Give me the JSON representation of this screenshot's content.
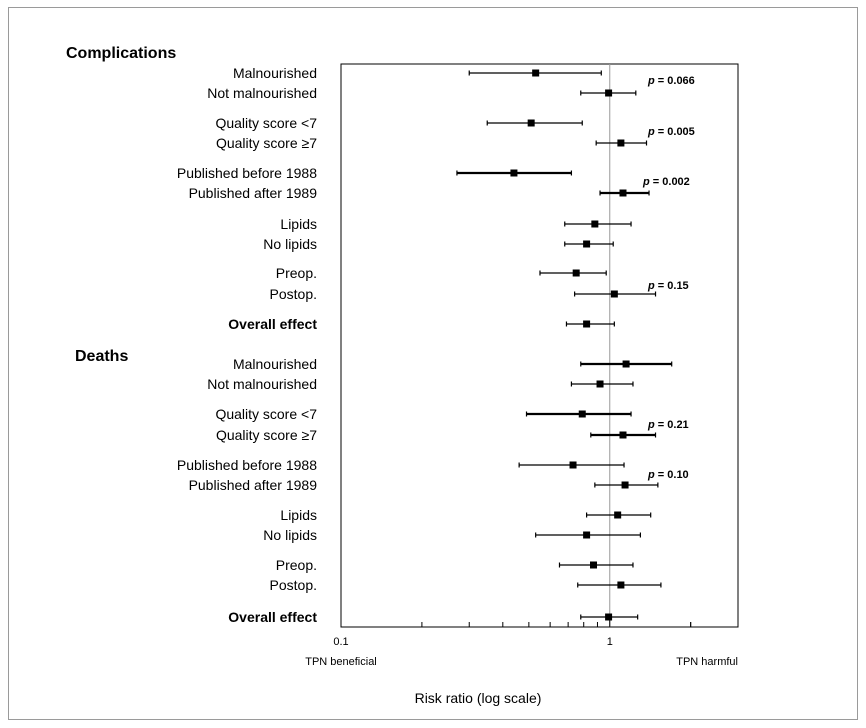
{
  "chart_data": {
    "type": "forest",
    "x_scale": "log",
    "xlim": [
      0.1,
      3
    ],
    "x_ticks": [
      "0.1",
      "1"
    ],
    "x_tick_values": [
      0.1,
      1
    ],
    "xlabel": "Risk ratio (log scale)",
    "left_note": "TPN beneficial",
    "right_note": "TPN harmful",
    "reference_line": 1,
    "sections": [
      {
        "title": "Complications",
        "rows": [
          {
            "label": "Malnourished",
            "est": 0.53,
            "lo": 0.3,
            "hi": 0.93
          },
          {
            "label": "Not malnourished",
            "est": 0.99,
            "lo": 0.78,
            "hi": 1.25
          },
          {
            "label": "Quality score <7",
            "est": 0.51,
            "lo": 0.35,
            "hi": 0.79
          },
          {
            "label": "Quality score ≥7",
            "est": 1.1,
            "lo": 0.89,
            "hi": 1.37
          },
          {
            "label": "Published before 1988",
            "est": 0.44,
            "lo": 0.27,
            "hi": 0.72,
            "bold_ci": true
          },
          {
            "label": "Published after 1989",
            "est": 1.12,
            "lo": 0.92,
            "hi": 1.4,
            "bold_ci": true
          },
          {
            "label": "Lipids",
            "est": 0.88,
            "lo": 0.68,
            "hi": 1.2
          },
          {
            "label": "No lipids",
            "est": 0.82,
            "lo": 0.68,
            "hi": 1.03
          },
          {
            "label": "Preop.",
            "est": 0.75,
            "lo": 0.55,
            "hi": 0.97
          },
          {
            "label": "Postop.",
            "est": 1.04,
            "lo": 0.74,
            "hi": 1.48
          },
          {
            "label": "Overall effect",
            "est": 0.82,
            "lo": 0.69,
            "hi": 1.04,
            "bold_label": true
          }
        ],
        "p_values": [
          "0.066",
          "0.005",
          "0.002",
          "0.15"
        ]
      },
      {
        "title": "Deaths",
        "rows": [
          {
            "label": "Malnourished",
            "est": 1.15,
            "lo": 0.78,
            "hi": 1.7,
            "bold_ci": true
          },
          {
            "label": "Not malnourished",
            "est": 0.92,
            "lo": 0.72,
            "hi": 1.22
          },
          {
            "label": "Quality score <7",
            "est": 0.79,
            "lo": 0.49,
            "hi": 1.2,
            "bold_ci": true
          },
          {
            "label": "Quality score ≥7",
            "est": 1.12,
            "lo": 0.85,
            "hi": 1.48,
            "bold_ci": true
          },
          {
            "label": "Published before 1988",
            "est": 0.73,
            "lo": 0.46,
            "hi": 1.13
          },
          {
            "label": "Published after 1989",
            "est": 1.14,
            "lo": 0.88,
            "hi": 1.51
          },
          {
            "label": "Lipids",
            "est": 1.07,
            "lo": 0.82,
            "hi": 1.42
          },
          {
            "label": "No lipids",
            "est": 0.82,
            "lo": 0.53,
            "hi": 1.3
          },
          {
            "label": "Preop.",
            "est": 0.87,
            "lo": 0.65,
            "hi": 1.22
          },
          {
            "label": "Postop.",
            "est": 1.1,
            "lo": 0.76,
            "hi": 1.55
          },
          {
            "label": "Overall effect",
            "est": 0.99,
            "lo": 0.78,
            "hi": 1.27,
            "bold_label": true
          }
        ],
        "p_values": [
          "0.21",
          "0.10"
        ]
      }
    ]
  }
}
